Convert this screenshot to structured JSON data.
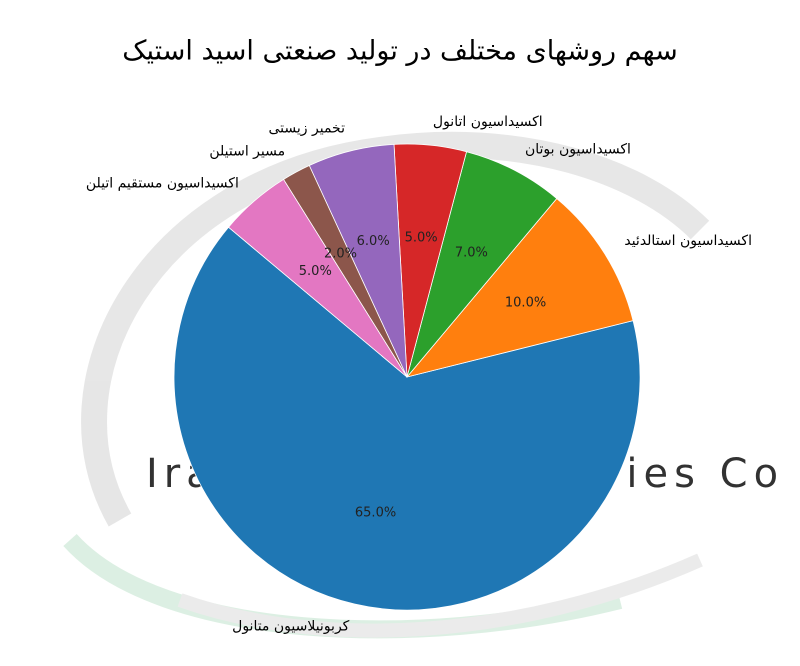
{
  "chart_data": {
    "type": "pie",
    "title": "سهم روشهای مختلف در تولید صنعتی اسید استیک",
    "watermark": "Iran Acetic Industries Co",
    "categories": [
      "کربونیلاسیون متانول",
      "اکسیداسیون استالدئید",
      "اکسیداسیون بوتان",
      "اکسیداسیون اتانول",
      "تخمیر زیستی",
      "مسیر استیلن",
      "اکسیداسیون مستقیم اتیلن"
    ],
    "values": [
      65,
      10,
      7,
      5,
      6,
      2,
      5
    ],
    "value_labels": [
      "65.0%",
      "10.0%",
      "7.0%",
      "5.0%",
      "6.0%",
      "2.0%",
      "5.0%"
    ],
    "colors": [
      "#1f77b4",
      "#ff7f0e",
      "#2ca02c",
      "#d62728",
      "#9467bd",
      "#8c564b",
      "#e377c2"
    ]
  }
}
